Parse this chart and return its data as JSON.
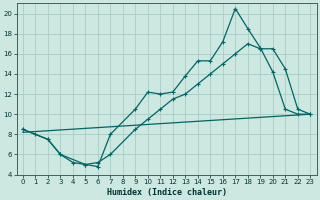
{
  "xlabel": "Humidex (Indice chaleur)",
  "bg_color": "#cce8e0",
  "grid_color": "#aaccc4",
  "line_color": "#006666",
  "xlim": [
    -0.5,
    23.5
  ],
  "ylim": [
    4,
    21
  ],
  "yticks": [
    4,
    6,
    8,
    10,
    12,
    14,
    16,
    18,
    20
  ],
  "xticks": [
    0,
    1,
    2,
    3,
    4,
    5,
    6,
    7,
    8,
    9,
    10,
    11,
    12,
    13,
    14,
    15,
    16,
    17,
    18,
    19,
    20,
    21,
    22,
    23
  ],
  "series1_x": [
    0,
    1,
    2,
    3,
    5,
    6,
    7,
    9,
    10,
    11,
    12,
    13,
    14,
    15,
    16,
    17,
    18,
    19,
    20,
    21,
    22,
    23
  ],
  "series1_y": [
    8.5,
    8.0,
    7.5,
    6.0,
    5.0,
    4.8,
    8.0,
    10.5,
    12.2,
    12.0,
    12.2,
    13.8,
    15.3,
    15.3,
    17.2,
    20.5,
    18.5,
    16.6,
    14.2,
    10.5,
    10.0,
    10.0
  ],
  "series2_x": [
    0,
    2,
    3,
    4,
    5,
    6,
    7,
    9,
    10,
    11,
    12,
    13,
    14,
    15,
    16,
    17,
    18,
    19,
    20,
    21,
    22,
    23
  ],
  "series2_y": [
    8.5,
    7.5,
    6.0,
    5.2,
    5.0,
    5.2,
    6.0,
    8.5,
    9.5,
    10.5,
    11.5,
    12.0,
    13.0,
    14.0,
    15.0,
    16.0,
    17.0,
    16.5,
    16.5,
    14.5,
    10.5,
    10.0
  ],
  "series3_x": [
    0,
    23
  ],
  "series3_y": [
    8.2,
    10.0
  ]
}
